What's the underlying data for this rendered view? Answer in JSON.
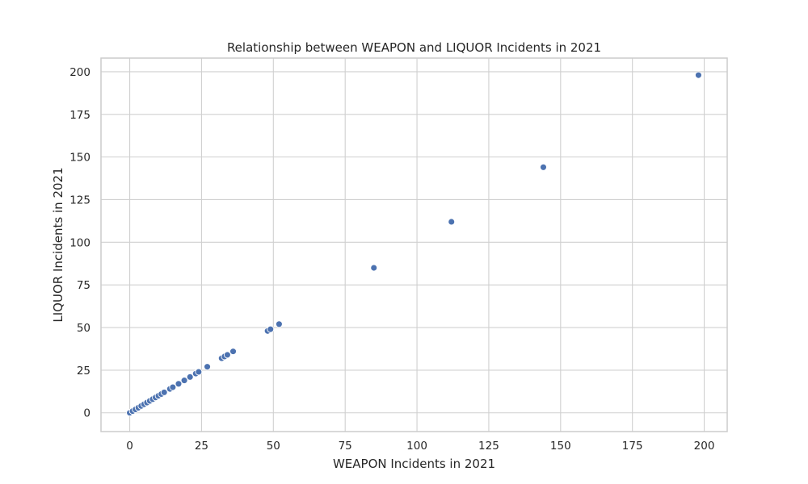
{
  "chart_data": {
    "type": "scatter",
    "title": "Relationship between WEAPON and LIQUOR Incidents in 2021",
    "xlabel": "WEAPON Incidents in 2021",
    "ylabel": "LIQUOR Incidents in 2021",
    "xlim": [
      -10,
      208
    ],
    "ylim": [
      -11,
      208
    ],
    "xticks": [
      0,
      25,
      50,
      75,
      100,
      125,
      150,
      175,
      200
    ],
    "yticks": [
      0,
      25,
      50,
      75,
      100,
      125,
      150,
      175,
      200
    ],
    "grid": true,
    "point_color": "#4c72b0",
    "x": [
      0,
      1,
      2,
      3,
      4,
      5,
      6,
      7,
      8,
      9,
      10,
      11,
      12,
      14,
      15,
      17,
      19,
      21,
      23,
      24,
      27,
      32,
      33,
      34,
      36,
      48,
      49,
      52,
      85,
      112,
      144,
      198
    ],
    "y": [
      0,
      1,
      2,
      3,
      4,
      5,
      6,
      7,
      8,
      9,
      10,
      11,
      12,
      14,
      15,
      17,
      19,
      21,
      23,
      24,
      27,
      32,
      33,
      34,
      36,
      48,
      49,
      52,
      85,
      112,
      144,
      198
    ]
  }
}
